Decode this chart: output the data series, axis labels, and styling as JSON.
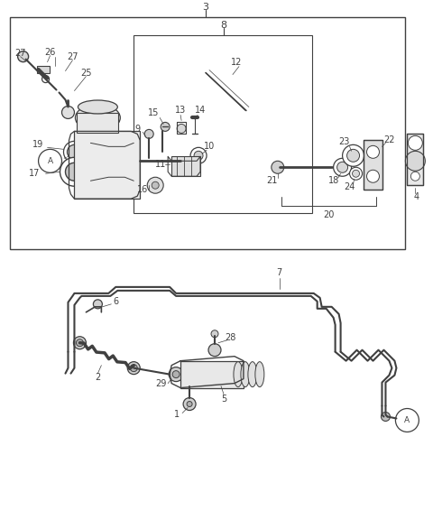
{
  "background_color": "#ffffff",
  "line_color": "#404040",
  "fig_width": 4.8,
  "fig_height": 5.66,
  "dpi": 100
}
